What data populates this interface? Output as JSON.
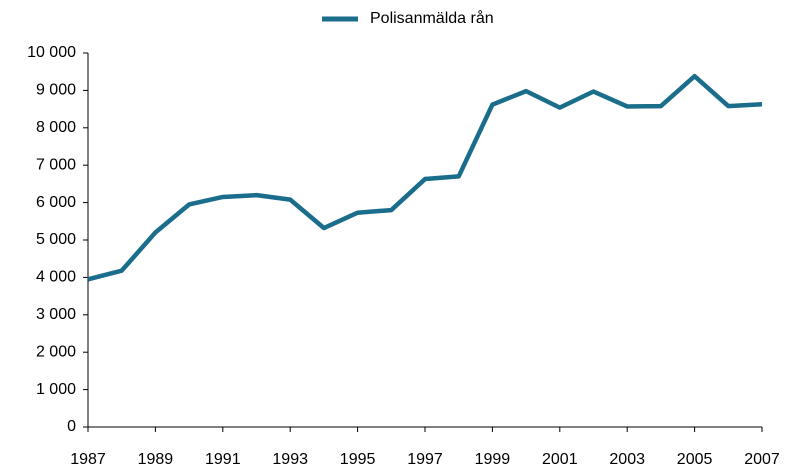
{
  "chart_data": {
    "type": "line",
    "x": [
      1987,
      1988,
      1989,
      1990,
      1991,
      1992,
      1993,
      1994,
      1995,
      1996,
      1997,
      1998,
      1999,
      2000,
      2001,
      2002,
      2003,
      2004,
      2005,
      2006,
      2007
    ],
    "series": [
      {
        "name": "Polisanmälda rån",
        "color": "#1b6d8c",
        "values": [
          3950,
          4180,
          5200,
          5950,
          6150,
          6200,
          6080,
          5320,
          5730,
          5800,
          6630,
          6700,
          8620,
          8980,
          8540,
          8970,
          8570,
          8580,
          9380,
          8580,
          8630
        ]
      }
    ],
    "xlim": [
      1987,
      2007
    ],
    "xticks": [
      1987,
      1989,
      1991,
      1993,
      1995,
      1997,
      1999,
      2001,
      2003,
      2005,
      2007
    ],
    "ylim": [
      0,
      10000
    ],
    "yticks": [
      0,
      {
        "value": 1000,
        "label": "1 000"
      },
      {
        "value": 2000,
        "label": "2 000"
      },
      {
        "value": 3000,
        "label": "3 000"
      },
      {
        "value": 4000,
        "label": "4 000"
      },
      {
        "value": 5000,
        "label": "5 000"
      },
      {
        "value": 6000,
        "label": "6 000"
      },
      {
        "value": 7000,
        "label": "7 000"
      },
      {
        "value": 8000,
        "label": "8 000"
      },
      {
        "value": 9000,
        "label": "9 000"
      },
      {
        "value": 10000,
        "label": "10 000"
      }
    ],
    "grid": false,
    "legend": "top"
  }
}
